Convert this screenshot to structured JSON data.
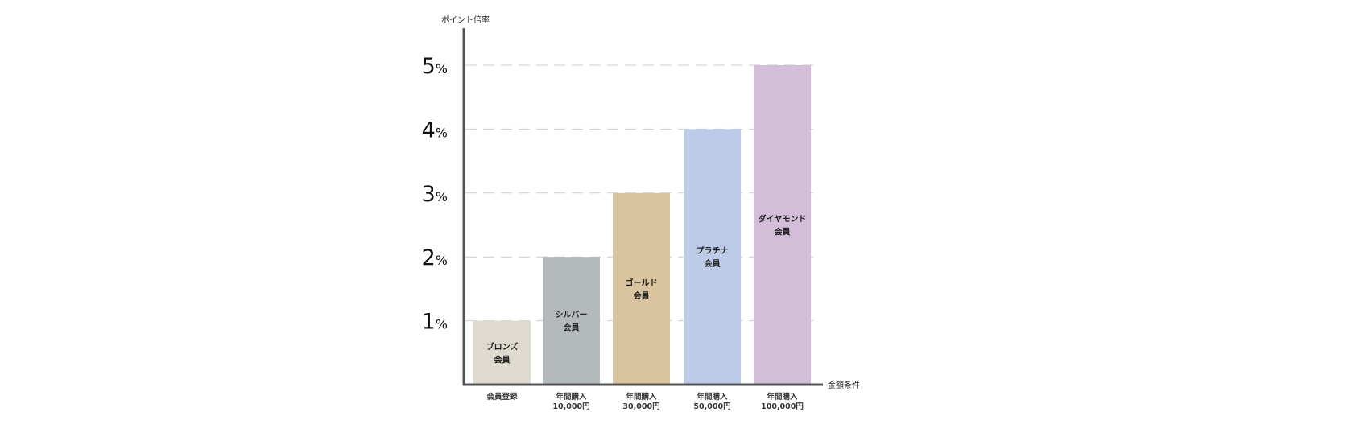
{
  "chart_data": {
    "type": "bar",
    "ylabel": "ポイント倍率",
    "xlabel": "金額条件",
    "ylim": [
      0,
      5
    ],
    "grid": true,
    "y_ticks": [
      {
        "value": 1,
        "num": "1",
        "unit": "%"
      },
      {
        "value": 2,
        "num": "2",
        "unit": "%"
      },
      {
        "value": 3,
        "num": "3",
        "unit": "%"
      },
      {
        "value": 4,
        "num": "4",
        "unit": "%"
      },
      {
        "value": 5,
        "num": "5",
        "unit": "%"
      }
    ],
    "bars": [
      {
        "name": "ブロンズ",
        "suffix": "会員",
        "value": 1,
        "color": "#dedad0",
        "category": [
          "会員登録"
        ]
      },
      {
        "name": "シルバー",
        "suffix": "会員",
        "value": 2,
        "color": "#b4b9bb",
        "category": [
          "年間購入",
          "10,000円"
        ]
      },
      {
        "name": "ゴールド",
        "suffix": "会員",
        "value": 3,
        "color": "#dac39f",
        "category": [
          "年間購入",
          "30,000円"
        ]
      },
      {
        "name": "プラチナ",
        "suffix": "会員",
        "value": 4,
        "color": "#bccbe8",
        "category": [
          "年間購入",
          "50,000円"
        ]
      },
      {
        "name": "ダイヤモンド",
        "suffix": "会員",
        "value": 5,
        "color": "#d3bed9",
        "category": [
          "年間購入",
          "100,000円"
        ]
      }
    ]
  }
}
